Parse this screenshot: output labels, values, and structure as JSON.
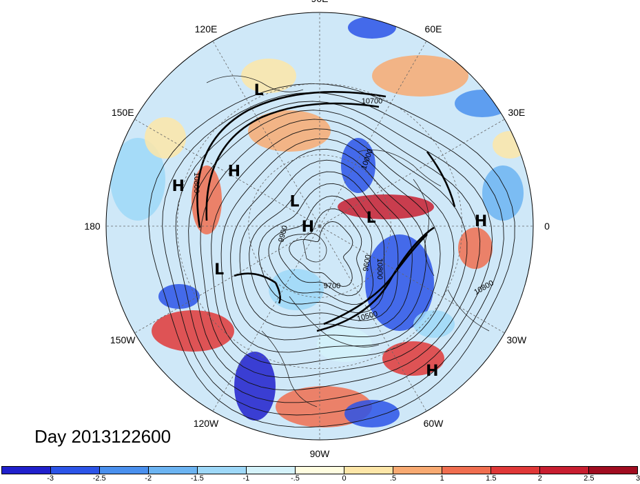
{
  "title": "Day 2013122600",
  "longitude_labels": [
    {
      "id": "90e",
      "text": "90E",
      "angle": 0
    },
    {
      "id": "60e",
      "text": "60E",
      "angle": 30
    },
    {
      "id": "30e",
      "text": "30E",
      "angle": 60
    },
    {
      "id": "0",
      "text": "0",
      "angle": 90
    },
    {
      "id": "30w",
      "text": "30W",
      "angle": 120
    },
    {
      "id": "60w",
      "text": "60W",
      "angle": 150
    },
    {
      "id": "90w",
      "text": "90W",
      "angle": 180
    },
    {
      "id": "120w",
      "text": "120W",
      "angle": 210
    },
    {
      "id": "150w",
      "text": "150W",
      "angle": 240
    },
    {
      "id": "180",
      "text": "180",
      "angle": 270
    },
    {
      "id": "150e",
      "text": "150E",
      "angle": 300
    },
    {
      "id": "120e",
      "text": "120E",
      "angle": 330
    }
  ],
  "pressure_centers": [
    {
      "type": "L",
      "lon": 114,
      "lat": 27
    },
    {
      "type": "H",
      "lon": 147,
      "lat": 47
    },
    {
      "type": "H",
      "lon": 164,
      "lat": 28
    },
    {
      "type": "L",
      "lon": 135,
      "lat": 75
    },
    {
      "type": "H",
      "lon": 180,
      "lat": 85
    },
    {
      "type": "L",
      "lon": 10,
      "lat": 68
    },
    {
      "type": "H",
      "lon": 2,
      "lat": 22
    },
    {
      "type": "L",
      "lon": -157,
      "lat": 44
    },
    {
      "type": "H",
      "lon": -52,
      "lat": 13
    }
  ],
  "contour_labels": [
    "10700",
    "10800",
    "9900",
    "9600",
    "9700",
    "10500",
    "10800",
    "10800",
    "10000"
  ],
  "colorbar": {
    "colors": [
      "#2020cc",
      "#2c54e8",
      "#4a90ee",
      "#6cb4f2",
      "#9ed8f8",
      "#d4f2fa",
      "#fffde0",
      "#fde6a8",
      "#f8aa72",
      "#f06e50",
      "#e03838",
      "#c81e30",
      "#a00c20"
    ],
    "labels": [
      "-3",
      "-2.5",
      "-2",
      "-1.5",
      "-1",
      "-.5",
      "0",
      ".5",
      "1",
      "1.5",
      "2",
      "2.5",
      "3"
    ]
  }
}
